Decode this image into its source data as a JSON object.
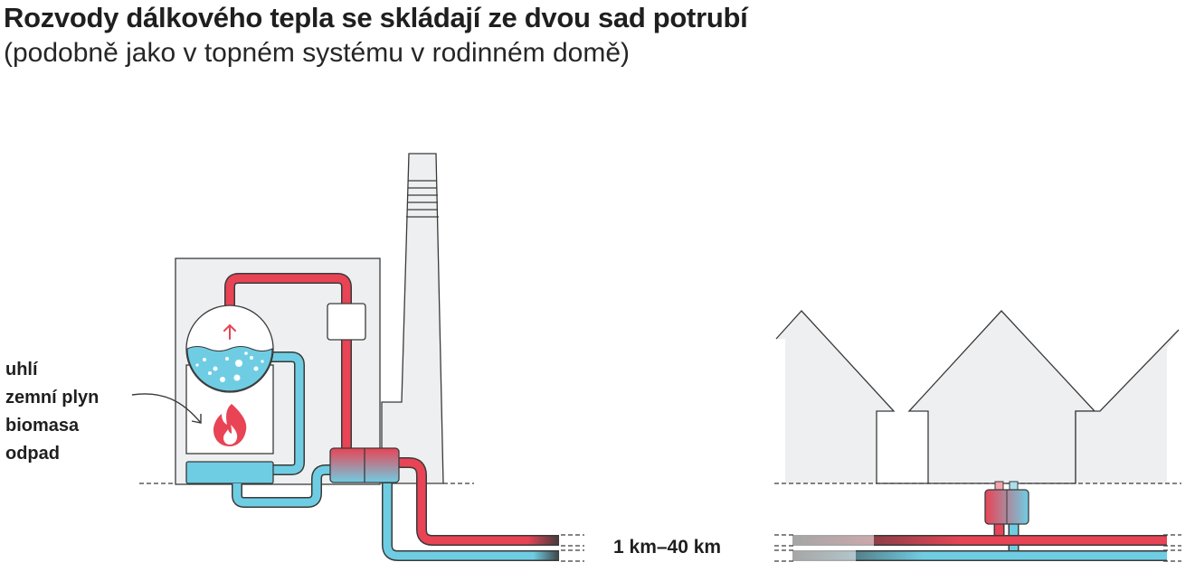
{
  "title": "Rozvody dálkového tepla se skládají ze dvou sad potrubí",
  "subtitle": "(podobně jako v topném systému v rodinném domě)",
  "fuels": [
    "uhlí",
    "zemní plyn",
    "biomasa",
    "odpad"
  ],
  "distance_label": "1 km–40 km",
  "colors": {
    "hot": "#e84455",
    "cold": "#6fcde3",
    "building": "#eeeff1",
    "outline": "#3a3a3a"
  }
}
